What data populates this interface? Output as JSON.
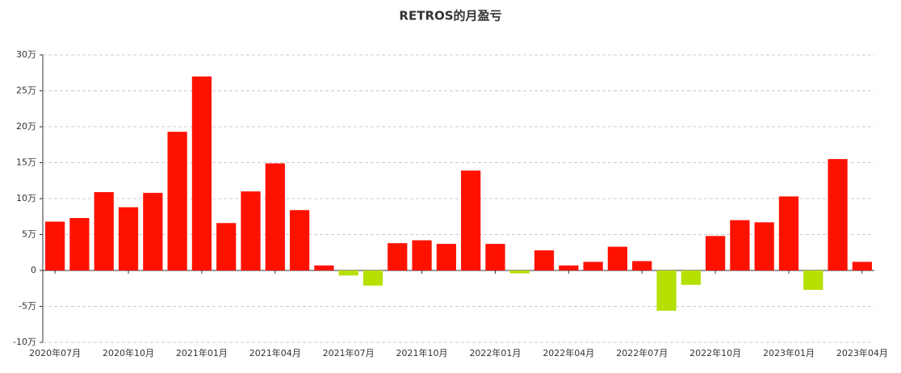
{
  "chart_data": {
    "type": "bar",
    "title": "RETROS的月盈亏",
    "categories": [
      "2020年07月",
      null,
      null,
      "2020年10月",
      null,
      null,
      "2021年01月",
      null,
      null,
      "2021年04月",
      null,
      null,
      "2021年07月",
      null,
      null,
      "2021年10月",
      null,
      null,
      "2022年01月",
      null,
      null,
      "2022年04月",
      null,
      null,
      "2022年07月",
      null,
      null,
      "2022年10月",
      null,
      null,
      "2023年01月",
      null,
      null,
      "2023年04月"
    ],
    "values": [
      6.8,
      7.3,
      10.9,
      8.8,
      10.8,
      19.3,
      27.0,
      6.6,
      11.0,
      14.9,
      8.4,
      0.7,
      -0.7,
      -2.1,
      3.8,
      4.2,
      3.7,
      13.9,
      3.7,
      -0.4,
      2.8,
      0.7,
      1.2,
      3.3,
      1.3,
      -5.6,
      -2.0,
      4.8,
      7.0,
      6.7,
      10.3,
      -2.7,
      15.5,
      1.2
    ],
    "color": "#ff1100",
    "negative_color": "#b5e000",
    "ylim": [
      -10,
      30
    ],
    "yticks": [
      {
        "value": -10,
        "label": "-10万"
      },
      {
        "value": -5,
        "label": "-5万"
      },
      0,
      {
        "value": 5,
        "label": "5万"
      },
      {
        "value": 10,
        "label": "10万"
      },
      {
        "value": 15,
        "label": "15万"
      },
      {
        "value": 20,
        "label": "20万"
      },
      {
        "value": 25,
        "label": "25万"
      },
      {
        "value": 30,
        "label": "30万"
      }
    ],
    "grid": true
  }
}
